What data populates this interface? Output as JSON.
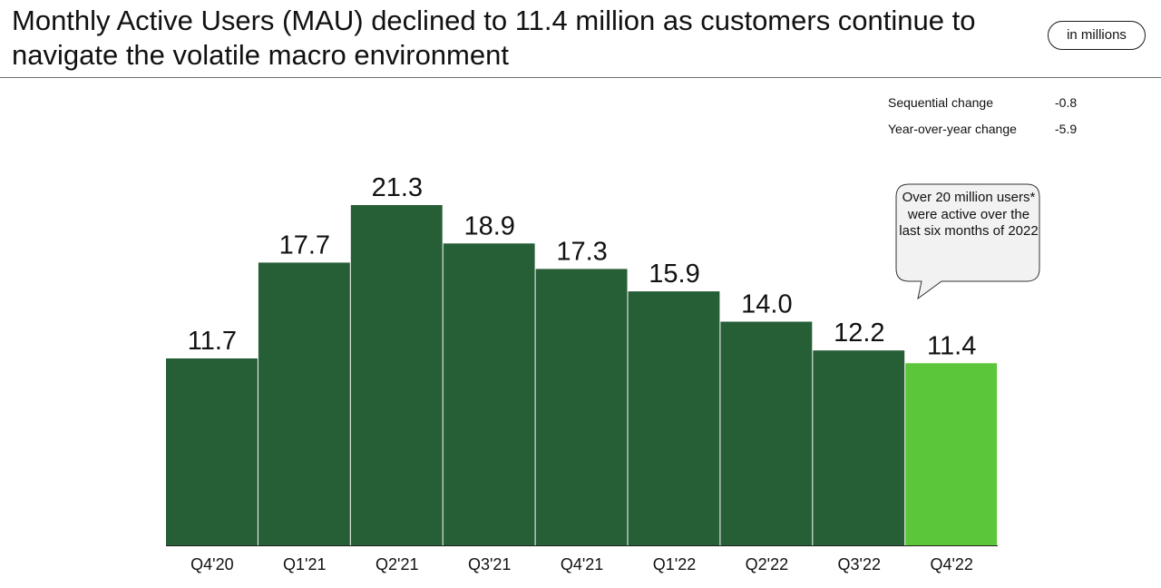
{
  "title": "Monthly Active Users (MAU) declined to 11.4 million as customers continue to navigate the volatile macro environment",
  "unit_badge": "in millions",
  "stats": [
    {
      "label": "Sequential change",
      "value": "-0.8"
    },
    {
      "label": "Year-over-year change",
      "value": "-5.9"
    }
  ],
  "callout": "Over 20 million users* were active over the last six months of 2022",
  "colors": {
    "bar": "#265e36",
    "highlight": "#5bc63a",
    "axis": "#222222"
  },
  "chart_data": {
    "type": "bar",
    "title": "",
    "xlabel": "",
    "ylabel": "",
    "categories": [
      "Q4'20",
      "Q1'21",
      "Q2'21",
      "Q3'21",
      "Q4'21",
      "Q1'22",
      "Q2'22",
      "Q3'22",
      "Q4'22"
    ],
    "values": [
      11.7,
      17.7,
      21.3,
      18.9,
      17.3,
      15.9,
      14.0,
      12.2,
      11.4
    ],
    "value_labels": [
      "11.7",
      "17.7",
      "21.3",
      "18.9",
      "17.3",
      "15.9",
      "14.0",
      "12.2",
      "11.4"
    ],
    "highlight_index": 8,
    "ylim": [
      0,
      21.3
    ],
    "grid": false,
    "legend": "none"
  }
}
